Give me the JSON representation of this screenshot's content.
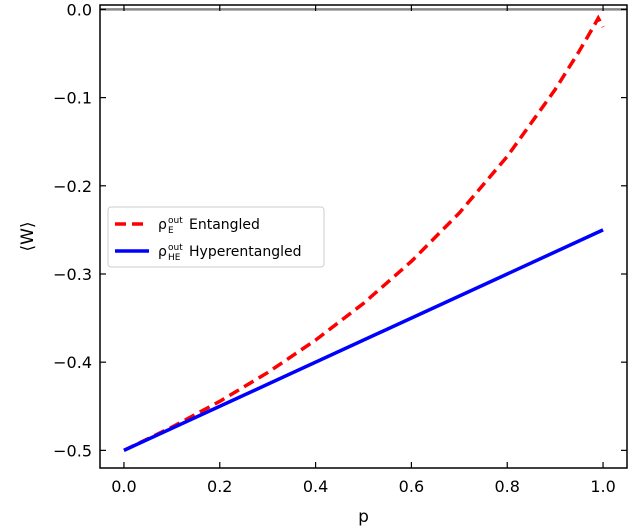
{
  "chart_data": {
    "type": "line",
    "xlabel": "p",
    "ylabel": "⟨W⟩",
    "xlim": [
      -0.05,
      1.05
    ],
    "ylim": [
      -0.52,
      0.005
    ],
    "xticks": [
      0.0,
      0.2,
      0.4,
      0.6,
      0.8,
      1.0
    ],
    "xtick_labels": [
      "0.0",
      "0.2",
      "0.4",
      "0.6",
      "0.8",
      "1.0"
    ],
    "yticks": [
      0.0,
      -0.1,
      -0.2,
      -0.3,
      -0.4,
      -0.5
    ],
    "ytick_labels": [
      "0.0",
      "−0.1",
      "−0.2",
      "−0.3",
      "−0.4",
      "−0.5"
    ],
    "grid": false,
    "legend_position": "center-left",
    "reference_line": {
      "y": 0.0,
      "color": "#888888"
    },
    "series": [
      {
        "name": "ρ_E^out Entangled",
        "legend_symbol": "ρ",
        "legend_sub": "E",
        "legend_sup": "out",
        "legend_text": "Entangled",
        "color": "#ff0000",
        "style": "dashed",
        "x": [
          0.0,
          0.1,
          0.2,
          0.3,
          0.4,
          0.5,
          0.6,
          0.7,
          0.8,
          0.9,
          0.95,
          0.98,
          0.99,
          1.0
        ],
        "y": [
          -0.5,
          -0.4737,
          -0.4444,
          -0.4118,
          -0.375,
          -0.3333,
          -0.2857,
          -0.2308,
          -0.1667,
          -0.0909,
          -0.0476,
          -0.0196,
          -0.0099,
          -0.02
        ]
      },
      {
        "name": "ρ_HE^out Hyperentangled",
        "legend_symbol": "ρ",
        "legend_sub": "HE",
        "legend_sup": "out",
        "legend_text": "Hyperentangled",
        "color": "#0000ff",
        "style": "solid",
        "x": [
          0.0,
          1.0
        ],
        "y": [
          -0.5,
          -0.25
        ]
      }
    ]
  }
}
